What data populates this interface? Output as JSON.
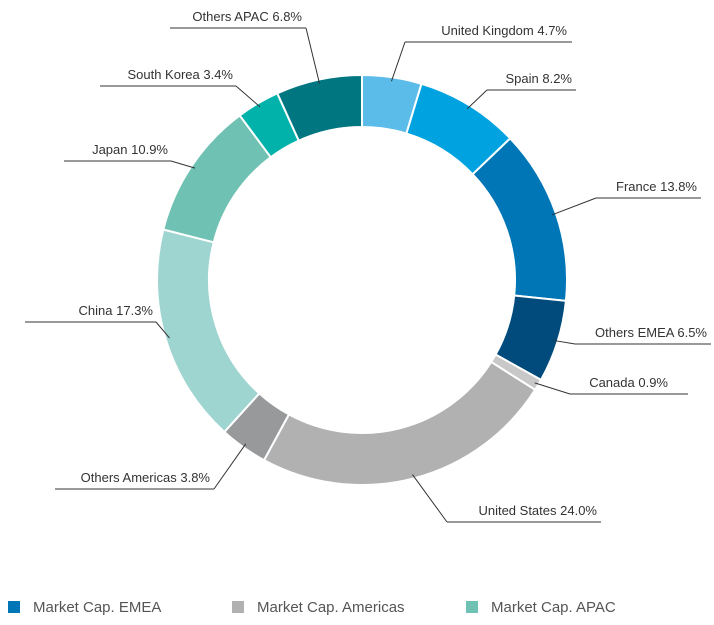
{
  "chart_data": {
    "type": "donut",
    "categories": [
      "United Kingdom",
      "Spain",
      "France",
      "Others EMEA",
      "Canada",
      "United States",
      "Others Americas",
      "China",
      "Japan",
      "South Korea",
      "Others APAC"
    ],
    "values": [
      4.7,
      8.2,
      13.8,
      6.5,
      0.9,
      24.0,
      3.8,
      17.3,
      10.9,
      3.4,
      6.8
    ],
    "value_labels": [
      "4.7%",
      "8.2%",
      "13.8%",
      "6.5%",
      "0.9%",
      "24.0%",
      "3.8%",
      "17.3%",
      "10.9%",
      "3.4%",
      "6.8%"
    ],
    "colors": [
      "#5bbbe9",
      "#00a3e0",
      "#0076b6",
      "#004b7c",
      "#c8c8c8",
      "#b1b1b1",
      "#97999b",
      "#9fd5d1",
      "#6fc2b3",
      "#00b2a9",
      "#007681"
    ],
    "legend": [
      {
        "name": "Market Cap. EMEA",
        "color": "#0076b6"
      },
      {
        "name": "Market Cap. Americas",
        "color": "#b1b1b1"
      },
      {
        "name": "Market Cap. APAC",
        "color": "#6fc2b3"
      }
    ]
  }
}
